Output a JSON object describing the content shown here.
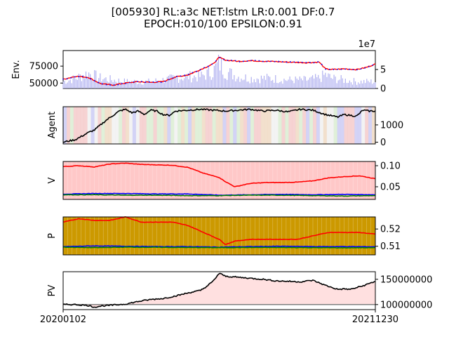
{
  "title_line1": "[005930] RL:a3c NET:lstm LR:0.001 DF:0.7",
  "title_line2": "EPOCH:010/100 EPSILON:0.91",
  "x_tick_labels": [
    "20200102",
    "20211230"
  ],
  "colors": {
    "price": "#ff0000",
    "price_dot": "#0000ff",
    "volume": "#b0b0f0",
    "agent": "#000000",
    "v_bg": "#ffc8c8",
    "p_bg": "#cc9900",
    "pv_fill": "#ffe0e0",
    "pv_base": "#808080"
  },
  "chart_data": [
    {
      "type": "line",
      "panel": "env",
      "ylabel": "Env.",
      "y_ticks": [
        "75000",
        "50000"
      ],
      "y_tick_values": [
        75000,
        50000
      ],
      "ylim": [
        42000,
        98000
      ],
      "secondary_axis": {
        "label": "1e7",
        "ticks": [
          "5",
          "0"
        ],
        "tick_values": [
          5,
          0
        ],
        "ylim": [
          0,
          10
        ]
      },
      "series": [
        {
          "type": "line",
          "x": [
            0,
            0.04,
            0.08,
            0.12,
            0.16,
            0.2,
            0.24,
            0.28,
            0.32,
            0.36,
            0.4,
            0.44,
            0.48,
            0.5,
            0.52,
            0.56,
            0.6,
            0.66,
            0.72,
            0.78,
            0.82,
            0.84,
            0.86,
            0.9,
            0.94,
            0.97,
            1.0
          ],
          "values": [
            55500,
            60000,
            58500,
            49000,
            47000,
            50000,
            52000,
            51000,
            52000,
            59000,
            62000,
            70000,
            78000,
            88000,
            84000,
            82000,
            83000,
            82000,
            81000,
            80000,
            81000,
            71000,
            70000,
            71000,
            70000,
            73000,
            78000
          ]
        },
        {
          "type": "bar",
          "x": [
            0,
            0.04,
            0.08,
            0.12,
            0.16,
            0.2,
            0.24,
            0.28,
            0.32,
            0.36,
            0.4,
            0.44,
            0.48,
            0.5,
            0.52,
            0.56,
            0.6,
            0.66,
            0.72,
            0.78,
            0.82,
            0.84,
            0.86,
            0.9,
            0.94,
            0.97,
            1.0
          ],
          "values": [
            2.0,
            3.0,
            4.5,
            3.0,
            2.5,
            2.0,
            2.0,
            2.0,
            2.5,
            3.0,
            3.5,
            3.5,
            5.0,
            7.5,
            5.0,
            3.5,
            3.0,
            3.0,
            2.5,
            2.5,
            3.0,
            4.0,
            3.0,
            2.5,
            2.0,
            2.0,
            2.0
          ]
        }
      ]
    },
    {
      "type": "line",
      "panel": "agent",
      "ylabel": "Agent",
      "y_ticks": [
        "1000",
        "0"
      ],
      "y_tick_values": [
        1000,
        0
      ],
      "ylim": [
        -100,
        2050
      ],
      "series": [
        {
          "type": "line",
          "x": [
            0,
            0.04,
            0.08,
            0.1,
            0.12,
            0.14,
            0.16,
            0.18,
            0.2,
            0.22,
            0.24,
            0.26,
            0.28,
            0.3,
            0.32,
            0.34,
            0.36,
            0.4,
            0.44,
            0.48,
            0.52,
            0.56,
            0.6,
            0.64,
            0.68,
            0.72,
            0.76,
            0.8,
            0.84,
            0.88,
            0.9,
            0.92,
            0.94,
            0.96,
            0.98,
            1.0
          ],
          "values": [
            0,
            150,
            550,
            700,
            1000,
            1300,
            1550,
            1800,
            1900,
            1700,
            1800,
            1600,
            1850,
            1800,
            1600,
            1550,
            1800,
            1850,
            1900,
            1850,
            1800,
            1850,
            1900,
            1800,
            1850,
            1750,
            1900,
            1850,
            1600,
            1450,
            1600,
            1550,
            1500,
            1850,
            1800,
            1800
          ]
        }
      ]
    },
    {
      "type": "line",
      "panel": "v",
      "ylabel": "V",
      "y_ticks": [
        "0.10",
        "0.05"
      ],
      "y_tick_values": [
        0.1,
        0.05
      ],
      "ylim": [
        0.02,
        0.11
      ],
      "series": [
        {
          "name": "red",
          "color": "#ff0000",
          "x": [
            0,
            0.05,
            0.1,
            0.15,
            0.2,
            0.25,
            0.3,
            0.35,
            0.4,
            0.45,
            0.5,
            0.52,
            0.55,
            0.6,
            0.65,
            0.7,
            0.75,
            0.8,
            0.85,
            0.9,
            0.95,
            1.0
          ],
          "values": [
            0.098,
            0.1,
            0.097,
            0.104,
            0.106,
            0.103,
            0.102,
            0.101,
            0.096,
            0.082,
            0.072,
            0.062,
            0.05,
            0.058,
            0.06,
            0.06,
            0.061,
            0.064,
            0.071,
            0.074,
            0.076,
            0.069
          ]
        },
        {
          "name": "blue",
          "color": "#0000ff",
          "x": [
            0,
            0.1,
            0.2,
            0.3,
            0.4,
            0.5,
            0.6,
            0.7,
            0.8,
            0.9,
            1.0
          ],
          "values": [
            0.0325,
            0.034,
            0.034,
            0.033,
            0.033,
            0.03,
            0.031,
            0.032,
            0.031,
            0.032,
            0.031
          ]
        },
        {
          "name": "green",
          "color": "#008000",
          "x": [
            0,
            0.1,
            0.2,
            0.3,
            0.4,
            0.5,
            0.6,
            0.7,
            0.8,
            0.9,
            1.0
          ],
          "values": [
            0.031,
            0.031,
            0.03,
            0.03,
            0.029,
            0.029,
            0.03,
            0.03,
            0.029,
            0.028,
            0.029
          ]
        }
      ]
    },
    {
      "type": "line",
      "panel": "p",
      "ylabel": "P",
      "y_ticks": [
        "0.52",
        "0.51"
      ],
      "y_tick_values": [
        0.52,
        0.51
      ],
      "ylim": [
        0.505,
        0.527
      ],
      "series": [
        {
          "name": "red",
          "color": "#ff0000",
          "x": [
            0,
            0.05,
            0.1,
            0.15,
            0.2,
            0.25,
            0.3,
            0.35,
            0.4,
            0.45,
            0.5,
            0.52,
            0.55,
            0.6,
            0.65,
            0.7,
            0.75,
            0.8,
            0.85,
            0.9,
            0.95,
            1.0
          ],
          "values": [
            0.524,
            0.526,
            0.525,
            0.525,
            0.527,
            0.524,
            0.524,
            0.524,
            0.522,
            0.518,
            0.514,
            0.511,
            0.513,
            0.514,
            0.514,
            0.514,
            0.514,
            0.516,
            0.518,
            0.518,
            0.518,
            0.517
          ]
        },
        {
          "name": "blue",
          "color": "#0000ff",
          "x": [
            0,
            0.1,
            0.2,
            0.3,
            0.4,
            0.5,
            0.6,
            0.7,
            0.8,
            0.9,
            1.0
          ],
          "values": [
            0.5098,
            0.5102,
            0.51,
            0.5098,
            0.5098,
            0.5095,
            0.5098,
            0.51,
            0.5098,
            0.5098,
            0.5097
          ]
        },
        {
          "name": "green",
          "color": "#008000",
          "x": [
            0,
            0.1,
            0.2,
            0.3,
            0.4,
            0.5,
            0.6,
            0.7,
            0.8,
            0.9,
            1.0
          ],
          "values": [
            0.5095,
            0.5092,
            0.5095,
            0.5094,
            0.5093,
            0.5092,
            0.5093,
            0.5093,
            0.5092,
            0.5091,
            0.5092
          ]
        }
      ]
    },
    {
      "type": "area",
      "panel": "pv",
      "ylabel": "PV",
      "y_ticks": [
        "150000000",
        "100000000"
      ],
      "y_tick_values": [
        150000000,
        100000000
      ],
      "ylim": [
        90000000,
        165000000
      ],
      "baseline": 100000000,
      "series": [
        {
          "type": "line",
          "x": [
            0,
            0.04,
            0.08,
            0.1,
            0.12,
            0.16,
            0.2,
            0.24,
            0.28,
            0.32,
            0.36,
            0.4,
            0.44,
            0.46,
            0.48,
            0.5,
            0.52,
            0.56,
            0.6,
            0.64,
            0.68,
            0.72,
            0.76,
            0.8,
            0.84,
            0.88,
            0.9,
            0.92,
            0.96,
            1.0
          ],
          "values": [
            100000000,
            100000000,
            98000000,
            95000000,
            97000000,
            99000000,
            101000000,
            106000000,
            110000000,
            112000000,
            117000000,
            123000000,
            128000000,
            136000000,
            146000000,
            162000000,
            156000000,
            154000000,
            152000000,
            150000000,
            147000000,
            146000000,
            145000000,
            148000000,
            138000000,
            130000000,
            131000000,
            130000000,
            137000000,
            146000000
          ]
        }
      ]
    }
  ]
}
